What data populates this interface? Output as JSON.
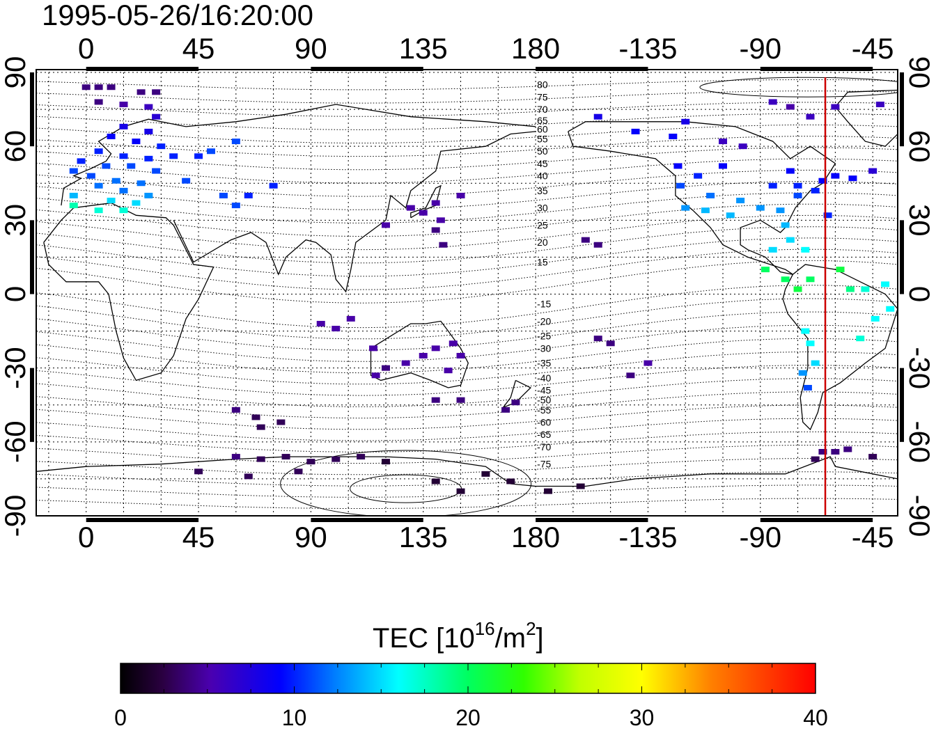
{
  "title": "1995-05-26/16:20:00",
  "colorbar": {
    "label_prefix": "TEC  [10",
    "label_exp": "16",
    "label_mid": "/m",
    "label_exp2": "2",
    "label_suffix": "]",
    "ticks": [
      "0",
      "10",
      "20",
      "30",
      "40"
    ],
    "min": 0,
    "max": 40
  },
  "axes": {
    "lon_ticks": [
      {
        "value": 0,
        "label": "0"
      },
      {
        "value": 45,
        "label": "45"
      },
      {
        "value": 90,
        "label": "90"
      },
      {
        "value": 135,
        "label": "135"
      },
      {
        "value": 180,
        "label": "180"
      },
      {
        "value": 225,
        "label": "-135"
      },
      {
        "value": 270,
        "label": "-90"
      },
      {
        "value": 315,
        "label": "-45"
      }
    ],
    "lat_ticks": [
      {
        "value": 90,
        "label": "90"
      },
      {
        "value": 60,
        "label": "60"
      },
      {
        "value": 30,
        "label": "30"
      },
      {
        "value": 0,
        "label": "0"
      },
      {
        "value": -30,
        "label": "-30"
      },
      {
        "value": -60,
        "label": "-60"
      },
      {
        "value": -90,
        "label": "-90"
      }
    ],
    "lon_range": [
      -20,
      325
    ],
    "lat_range": [
      -90,
      90
    ],
    "grid": true
  },
  "marker_line_lon": 296,
  "colors": {
    "marker_line": "#cc0000",
    "grid": "#000000"
  },
  "magnetic_labels": [
    {
      "label": "80",
      "lat": 85
    },
    {
      "label": "75",
      "lat": 80
    },
    {
      "label": "70",
      "lat": 75
    },
    {
      "label": "65",
      "lat": 70.5
    },
    {
      "label": "60",
      "lat": 67
    },
    {
      "label": "55",
      "lat": 63
    },
    {
      "label": "50",
      "lat": 58
    },
    {
      "label": "45",
      "lat": 53
    },
    {
      "label": "40",
      "lat": 48
    },
    {
      "label": "35",
      "lat": 42
    },
    {
      "label": "30",
      "lat": 35
    },
    {
      "label": "25",
      "lat": 28
    },
    {
      "label": "20",
      "lat": 21
    },
    {
      "label": "15",
      "lat": 13
    },
    {
      "label": "-15",
      "lat": -4
    },
    {
      "label": "-20",
      "lat": -11
    },
    {
      "label": "-25",
      "lat": -17
    },
    {
      "label": "-30",
      "lat": -22
    },
    {
      "label": "-35",
      "lat": -28
    },
    {
      "label": "-40",
      "lat": -34
    },
    {
      "label": "-45",
      "lat": -39
    },
    {
      "label": "-50",
      "lat": -43
    },
    {
      "label": "-55",
      "lat": -47
    },
    {
      "label": "-60",
      "lat": -52
    },
    {
      "label": "-65",
      "lat": -57
    },
    {
      "label": "-70",
      "lat": -62
    },
    {
      "label": "-75",
      "lat": -69
    }
  ],
  "chart_data": {
    "type": "scatter",
    "title": "1995-05-26/16:20:00",
    "xlim": [
      -20,
      325
    ],
    "ylim": [
      -90,
      90
    ],
    "points": [
      {
        "lon": 0,
        "lat": 84,
        "tec": 4
      },
      {
        "lon": 5,
        "lat": 84,
        "tec": 4
      },
      {
        "lon": 10,
        "lat": 84,
        "tec": 4
      },
      {
        "lon": 22,
        "lat": 82,
        "tec": 4
      },
      {
        "lon": 28,
        "lat": 82,
        "tec": 4
      },
      {
        "lon": 5,
        "lat": 78,
        "tec": 4
      },
      {
        "lon": 15,
        "lat": 77,
        "tec": 5
      },
      {
        "lon": 25,
        "lat": 76,
        "tec": 6
      },
      {
        "lon": 28,
        "lat": 72,
        "tec": 7
      },
      {
        "lon": 15,
        "lat": 68,
        "tec": 8
      },
      {
        "lon": 25,
        "lat": 66,
        "tec": 8
      },
      {
        "lon": 10,
        "lat": 64,
        "tec": 9
      },
      {
        "lon": 20,
        "lat": 62,
        "tec": 9
      },
      {
        "lon": 30,
        "lat": 60,
        "tec": 10
      },
      {
        "lon": 5,
        "lat": 58,
        "tec": 10
      },
      {
        "lon": 15,
        "lat": 56,
        "tec": 10
      },
      {
        "lon": 25,
        "lat": 55,
        "tec": 10
      },
      {
        "lon": 35,
        "lat": 56,
        "tec": 10
      },
      {
        "lon": 45,
        "lat": 56,
        "tec": 10
      },
      {
        "lon": -2,
        "lat": 54,
        "tec": 10
      },
      {
        "lon": 8,
        "lat": 52,
        "tec": 11
      },
      {
        "lon": 18,
        "lat": 52,
        "tec": 11
      },
      {
        "lon": 28,
        "lat": 50,
        "tec": 11
      },
      {
        "lon": -5,
        "lat": 50,
        "tec": 11
      },
      {
        "lon": 2,
        "lat": 48,
        "tec": 11
      },
      {
        "lon": 12,
        "lat": 46,
        "tec": 12
      },
      {
        "lon": 22,
        "lat": 45,
        "tec": 12
      },
      {
        "lon": 5,
        "lat": 44,
        "tec": 12
      },
      {
        "lon": 15,
        "lat": 42,
        "tec": 12
      },
      {
        "lon": 25,
        "lat": 40,
        "tec": 13
      },
      {
        "lon": -5,
        "lat": 40,
        "tec": 14
      },
      {
        "lon": 10,
        "lat": 38,
        "tec": 15
      },
      {
        "lon": 20,
        "lat": 37,
        "tec": 15
      },
      {
        "lon": -5,
        "lat": 36,
        "tec": 18
      },
      {
        "lon": 5,
        "lat": 34,
        "tec": 17
      },
      {
        "lon": 15,
        "lat": 34,
        "tec": 17
      },
      {
        "lon": 50,
        "lat": 58,
        "tec": 11
      },
      {
        "lon": 60,
        "lat": 62,
        "tec": 11
      },
      {
        "lon": 40,
        "lat": 46,
        "tec": 11
      },
      {
        "lon": 55,
        "lat": 40,
        "tec": 11
      },
      {
        "lon": 65,
        "lat": 40,
        "tec": 10
      },
      {
        "lon": 75,
        "lat": 44,
        "tec": 10
      },
      {
        "lon": 60,
        "lat": 36,
        "tec": 11
      },
      {
        "lon": 120,
        "lat": 28,
        "tec": 5
      },
      {
        "lon": 130,
        "lat": 35,
        "tec": 5
      },
      {
        "lon": 140,
        "lat": 37,
        "tec": 5
      },
      {
        "lon": 135,
        "lat": 33,
        "tec": 5
      },
      {
        "lon": 142,
        "lat": 30,
        "tec": 5
      },
      {
        "lon": 140,
        "lat": 26,
        "tec": 4
      },
      {
        "lon": 150,
        "lat": 40,
        "tec": 5
      },
      {
        "lon": 143,
        "lat": 20,
        "tec": 4
      },
      {
        "lon": 94,
        "lat": -12,
        "tec": 5
      },
      {
        "lon": 100,
        "lat": -14,
        "tec": 5
      },
      {
        "lon": 106,
        "lat": -10,
        "tec": 5
      },
      {
        "lon": 115,
        "lat": -22,
        "tec": 5
      },
      {
        "lon": 120,
        "lat": -30,
        "tec": 4
      },
      {
        "lon": 128,
        "lat": -28,
        "tec": 5
      },
      {
        "lon": 135,
        "lat": -25,
        "tec": 5
      },
      {
        "lon": 140,
        "lat": -22,
        "tec": 5
      },
      {
        "lon": 147,
        "lat": -20,
        "tec": 5
      },
      {
        "lon": 150,
        "lat": -25,
        "tec": 5
      },
      {
        "lon": 145,
        "lat": -31,
        "tec": 5
      },
      {
        "lon": 116,
        "lat": -33,
        "tec": 5
      },
      {
        "lon": 140,
        "lat": -43,
        "tec": 4
      },
      {
        "lon": 150,
        "lat": -43,
        "tec": 4
      },
      {
        "lon": 172,
        "lat": -44,
        "tec": 4
      },
      {
        "lon": 168,
        "lat": -47,
        "tec": 4
      },
      {
        "lon": 60,
        "lat": -47,
        "tec": 4
      },
      {
        "lon": 68,
        "lat": -50,
        "tec": 3
      },
      {
        "lon": 70,
        "lat": -54,
        "tec": 3
      },
      {
        "lon": 78,
        "lat": -52,
        "tec": 3
      },
      {
        "lon": 60,
        "lat": -66,
        "tec": 4
      },
      {
        "lon": 70,
        "lat": -67,
        "tec": 3
      },
      {
        "lon": 80,
        "lat": -66,
        "tec": 3
      },
      {
        "lon": 90,
        "lat": -68,
        "tec": 3
      },
      {
        "lon": 100,
        "lat": -67,
        "tec": 3
      },
      {
        "lon": 110,
        "lat": -66,
        "tec": 3
      },
      {
        "lon": 120,
        "lat": -68,
        "tec": 2
      },
      {
        "lon": 45,
        "lat": -72,
        "tec": 3
      },
      {
        "lon": 65,
        "lat": -74,
        "tec": 3
      },
      {
        "lon": 85,
        "lat": -72,
        "tec": 3
      },
      {
        "lon": 140,
        "lat": -76,
        "tec": 2
      },
      {
        "lon": 150,
        "lat": -80,
        "tec": 2
      },
      {
        "lon": 160,
        "lat": -73,
        "tec": 2
      },
      {
        "lon": 170,
        "lat": -76,
        "tec": 2
      },
      {
        "lon": 185,
        "lat": -80,
        "tec": 2
      },
      {
        "lon": 198,
        "lat": -78,
        "tec": 2
      },
      {
        "lon": 205,
        "lat": 72,
        "tec": 8
      },
      {
        "lon": 220,
        "lat": 66,
        "tec": 9
      },
      {
        "lon": 235,
        "lat": 64,
        "tec": 9
      },
      {
        "lon": 240,
        "lat": 70,
        "tec": 8
      },
      {
        "lon": 255,
        "lat": 62,
        "tec": 6
      },
      {
        "lon": 263,
        "lat": 60,
        "tec": 6
      },
      {
        "lon": 275,
        "lat": 78,
        "tec": 6
      },
      {
        "lon": 282,
        "lat": 76,
        "tec": 5
      },
      {
        "lon": 290,
        "lat": 72,
        "tec": 6
      },
      {
        "lon": 300,
        "lat": 76,
        "tec": 6
      },
      {
        "lon": 318,
        "lat": 77,
        "tec": 6
      },
      {
        "lon": 237,
        "lat": 52,
        "tec": 9
      },
      {
        "lon": 245,
        "lat": 48,
        "tec": 10
      },
      {
        "lon": 255,
        "lat": 52,
        "tec": 9
      },
      {
        "lon": 238,
        "lat": 44,
        "tec": 11
      },
      {
        "lon": 250,
        "lat": 40,
        "tec": 12
      },
      {
        "lon": 240,
        "lat": 35,
        "tec": 13
      },
      {
        "lon": 248,
        "lat": 34,
        "tec": 14
      },
      {
        "lon": 258,
        "lat": 32,
        "tec": 14
      },
      {
        "lon": 262,
        "lat": 38,
        "tec": 13
      },
      {
        "lon": 270,
        "lat": 35,
        "tec": 13
      },
      {
        "lon": 278,
        "lat": 34,
        "tec": 13
      },
      {
        "lon": 285,
        "lat": 40,
        "tec": 11
      },
      {
        "lon": 285,
        "lat": 44,
        "tec": 10
      },
      {
        "lon": 292,
        "lat": 42,
        "tec": 10
      },
      {
        "lon": 295,
        "lat": 46,
        "tec": 9
      },
      {
        "lon": 275,
        "lat": 44,
        "tec": 10
      },
      {
        "lon": 282,
        "lat": 50,
        "tec": 9
      },
      {
        "lon": 300,
        "lat": 48,
        "tec": 9
      },
      {
        "lon": 307,
        "lat": 47,
        "tec": 9
      },
      {
        "lon": 315,
        "lat": 50,
        "tec": 7
      },
      {
        "lon": 297,
        "lat": 32,
        "tec": 10
      },
      {
        "lon": 280,
        "lat": 28,
        "tec": 14
      },
      {
        "lon": 282,
        "lat": 22,
        "tec": 15
      },
      {
        "lon": 288,
        "lat": 18,
        "tec": 16
      },
      {
        "lon": 275,
        "lat": 18,
        "tec": 15
      },
      {
        "lon": 272,
        "lat": 10,
        "tec": 20
      },
      {
        "lon": 280,
        "lat": 6,
        "tec": 20
      },
      {
        "lon": 285,
        "lat": 2,
        "tec": 21
      },
      {
        "lon": 290,
        "lat": 6,
        "tec": 20
      },
      {
        "lon": 302,
        "lat": 10,
        "tec": 21
      },
      {
        "lon": 306,
        "lat": 2,
        "tec": 19
      },
      {
        "lon": 312,
        "lat": 2,
        "tec": 17
      },
      {
        "lon": 320,
        "lat": 4,
        "tec": 16
      },
      {
        "lon": 322,
        "lat": -6,
        "tec": 16
      },
      {
        "lon": 316,
        "lat": -10,
        "tec": 16
      },
      {
        "lon": 310,
        "lat": -18,
        "tec": 17
      },
      {
        "lon": 288,
        "lat": -15,
        "tec": 16
      },
      {
        "lon": 290,
        "lat": -20,
        "tec": 16
      },
      {
        "lon": 292,
        "lat": -28,
        "tec": 15
      },
      {
        "lon": 287,
        "lat": -32,
        "tec": 13
      },
      {
        "lon": 289,
        "lat": -38,
        "tec": 11
      },
      {
        "lon": 225,
        "lat": -28,
        "tec": 5
      },
      {
        "lon": 218,
        "lat": -33,
        "tec": 4
      },
      {
        "lon": 210,
        "lat": -20,
        "tec": 4
      },
      {
        "lon": 205,
        "lat": -18,
        "tec": 4
      },
      {
        "lon": 200,
        "lat": 22,
        "tec": 4
      },
      {
        "lon": 205,
        "lat": 20,
        "tec": 4
      },
      {
        "lon": 295,
        "lat": -64,
        "tec": 4
      },
      {
        "lon": 300,
        "lat": -64,
        "tec": 4
      },
      {
        "lon": 305,
        "lat": -63,
        "tec": 4
      },
      {
        "lon": 292,
        "lat": -67,
        "tec": 3
      },
      {
        "lon": 315,
        "lat": -66,
        "tec": 3
      }
    ]
  }
}
